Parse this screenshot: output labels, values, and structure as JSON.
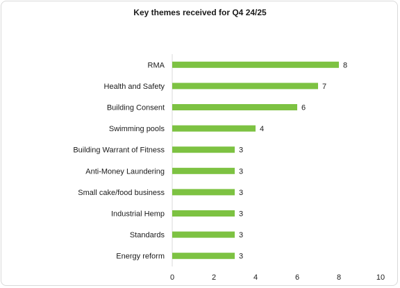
{
  "chart_data": {
    "type": "bar",
    "orientation": "horizontal",
    "title": "Key themes received for Q4 24/25",
    "categories": [
      "RMA",
      "Health and Safety",
      "Building Consent",
      "Swimming pools",
      "Building Warrant of Fitness",
      "Anti-Money Laundering",
      "Small cake/food business",
      "Industrial Hemp",
      "Standards",
      "Energy reform"
    ],
    "values": [
      8,
      7,
      6,
      4,
      3,
      3,
      3,
      3,
      3,
      3
    ],
    "xlim": [
      0,
      10
    ],
    "x_ticks": [
      "0",
      "2",
      "4",
      "6",
      "8",
      "10"
    ],
    "grid": false,
    "legend": "none",
    "bar_color": "#7dc242"
  }
}
